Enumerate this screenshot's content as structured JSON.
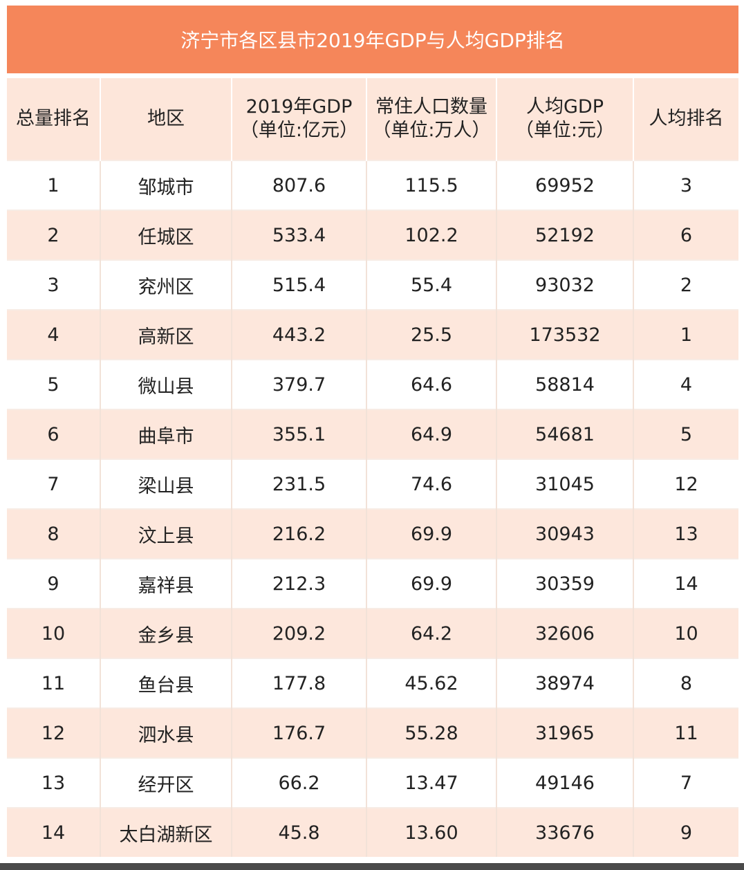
{
  "title": "济宁市各区县市2019年GDP与人均GDP排名",
  "colors": {
    "title_bg": "#f5865a",
    "header_bg": "#fde6da",
    "stripe_bg": "#fde7dc"
  },
  "headers": [
    [
      "总量排名"
    ],
    [
      "地区"
    ],
    [
      "2019年GDP",
      "（单位:亿元）"
    ],
    [
      "常住人口数量",
      "（单位:万人）"
    ],
    [
      "人均GDP",
      "（单位:元）"
    ],
    [
      "人均排名"
    ]
  ],
  "rows": [
    [
      "1",
      "邹城市",
      "807.6",
      "115.5",
      "69952",
      "3"
    ],
    [
      "2",
      "任城区",
      "533.4",
      "102.2",
      "52192",
      "6"
    ],
    [
      "3",
      "兖州区",
      "515.4",
      "55.4",
      "93032",
      "2"
    ],
    [
      "4",
      "高新区",
      "443.2",
      "25.5",
      "173532",
      "1"
    ],
    [
      "5",
      "微山县",
      "379.7",
      "64.6",
      "58814",
      "4"
    ],
    [
      "6",
      "曲阜市",
      "355.1",
      "64.9",
      "54681",
      "5"
    ],
    [
      "7",
      "梁山县",
      "231.5",
      "74.6",
      "31045",
      "12"
    ],
    [
      "8",
      "汶上县",
      "216.2",
      "69.9",
      "30943",
      "13"
    ],
    [
      "9",
      "嘉祥县",
      "212.3",
      "69.9",
      "30359",
      "14"
    ],
    [
      "10",
      "金乡县",
      "209.2",
      "64.2",
      "32606",
      "10"
    ],
    [
      "11",
      "鱼台县",
      "177.8",
      "45.62",
      "38974",
      "8"
    ],
    [
      "12",
      "泗水县",
      "176.7",
      "55.28",
      "31965",
      "11"
    ],
    [
      "13",
      "经开区",
      "66.2",
      "13.47",
      "49146",
      "7"
    ],
    [
      "14",
      "太白湖新区",
      "45.8",
      "13.60",
      "33676",
      "9"
    ]
  ]
}
